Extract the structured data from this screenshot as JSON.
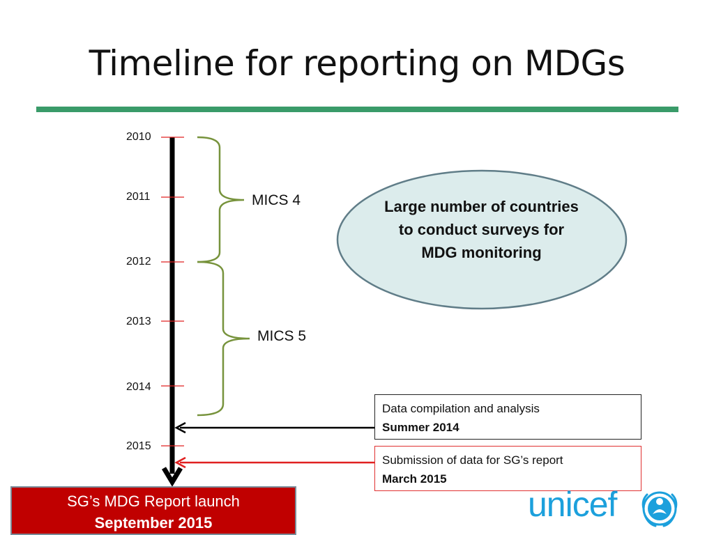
{
  "slide": {
    "title": "Timeline for reporting on MDGs"
  },
  "timeline": {
    "years": [
      "2010",
      "2011",
      "2012",
      "2013",
      "2014",
      "2015"
    ],
    "phases": [
      {
        "label": "MICS 4",
        "from": "2010",
        "to": "2012"
      },
      {
        "label": "MICS 5",
        "from": "2012",
        "to": "2014"
      }
    ]
  },
  "callout": {
    "text": "Large number of countries to conduct surveys for MDG monitoring"
  },
  "notes": [
    {
      "text": "Data compilation and analysis",
      "date": "Summer 2014",
      "color": "#000000"
    },
    {
      "text": "Submission of data for SG’s report",
      "date": "March 2015",
      "color": "#e02020"
    }
  ],
  "launch": {
    "text": "SG’s MDG Report launch",
    "date": "September 2015",
    "color": "#c00000"
  },
  "logo": {
    "text": "unicef",
    "color": "#1ca0dc"
  },
  "colors": {
    "rule": "#3a9b69",
    "brace": "#77933c",
    "tick": "#e02020",
    "ellipse_fill": "#dcecec",
    "ellipse_stroke": "#607d88"
  }
}
